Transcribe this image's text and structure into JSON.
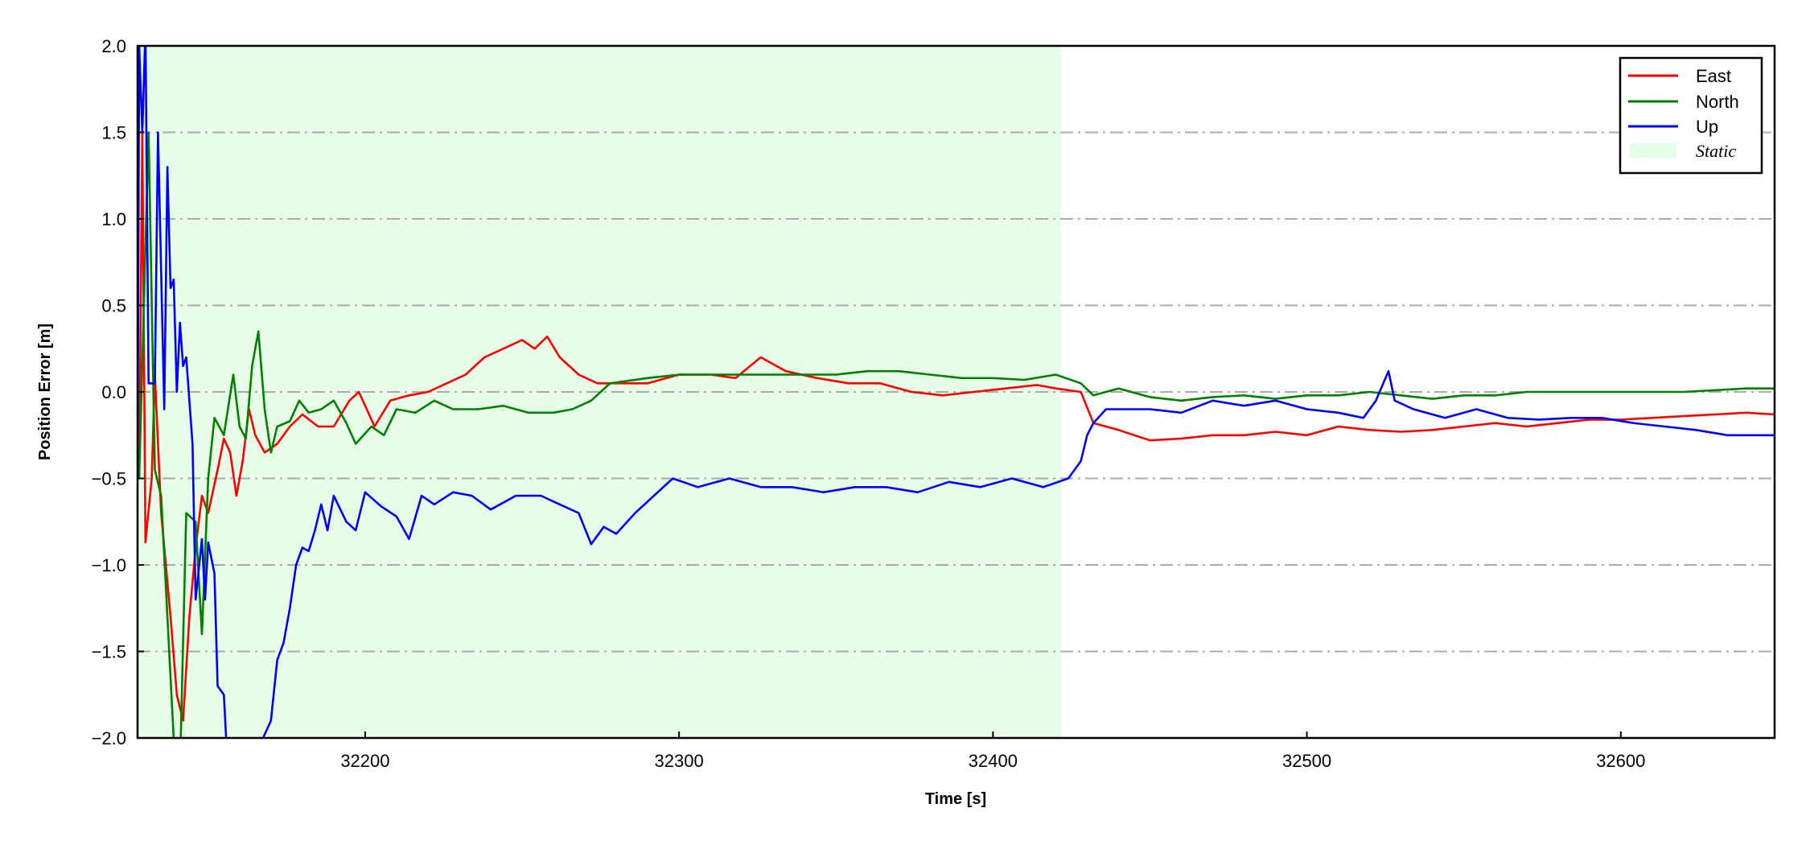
{
  "chart_data": {
    "type": "line",
    "title": "",
    "xlabel": "Time [s]",
    "ylabel": "Position Error [m]",
    "xlim": [
      32127.5,
      32649
    ],
    "ylim": [
      -2.0,
      2.0
    ],
    "xticks": [
      32200,
      32300,
      32400,
      32500,
      32600
    ],
    "xtick_labels": [
      "32200",
      "32300",
      "32400",
      "32500",
      "32600"
    ],
    "yticks": [
      -2.0,
      -1.5,
      -1.0,
      -0.5,
      0.0,
      0.5,
      1.0,
      1.5,
      2.0
    ],
    "ytick_labels": [
      "−2.0",
      "−1.5",
      "−1.0",
      "−0.5",
      "0.0",
      "0.5",
      "1.0",
      "1.5",
      "2.0"
    ],
    "grid": "horizontal dash-dot",
    "legend_position": "top-right",
    "shaded_region": {
      "label": "Static",
      "x": [
        32127.5,
        32421.7
      ],
      "color": "#e8fde8"
    },
    "series": [
      {
        "name": "East",
        "color": "#ff0000",
        "x": [
          32128,
          32129,
          32130,
          32132,
          32133,
          32135,
          32138,
          32140,
          32142,
          32144,
          32146,
          32148,
          32150,
          32153,
          32155,
          32157,
          32159,
          32161,
          32163,
          32165,
          32168,
          32172,
          32176,
          32180,
          32185,
          32190,
          32195,
          32198,
          32203,
          32208,
          32214,
          32220,
          32226,
          32232,
          32238,
          32244,
          32250,
          32254,
          32258,
          32262,
          32268,
          32274,
          32280,
          32290,
          32300,
          32310,
          32318,
          32326,
          32334,
          32344,
          32354,
          32364,
          32374,
          32384,
          32394,
          32404,
          32414,
          32420,
          32428,
          32432,
          32440,
          32450,
          32460,
          32470,
          32480,
          32490,
          32500,
          32510,
          32520,
          32530,
          32540,
          32550,
          32560,
          32570,
          32580,
          32590,
          32600,
          32610,
          32620,
          32630,
          32640,
          32649
        ],
        "y": [
          -0.5,
          1.5,
          -0.87,
          -0.5,
          0.1,
          -0.7,
          -1.3,
          -1.75,
          -1.9,
          -1.3,
          -0.9,
          -0.6,
          -0.7,
          -0.45,
          -0.27,
          -0.35,
          -0.6,
          -0.4,
          -0.1,
          -0.25,
          -0.35,
          -0.3,
          -0.2,
          -0.13,
          -0.2,
          -0.2,
          -0.05,
          0.0,
          -0.2,
          -0.05,
          -0.02,
          0.0,
          0.05,
          0.1,
          0.2,
          0.25,
          0.3,
          0.25,
          0.32,
          0.2,
          0.1,
          0.05,
          0.05,
          0.05,
          0.1,
          0.1,
          0.08,
          0.2,
          0.12,
          0.08,
          0.05,
          0.05,
          0.0,
          -0.02,
          0.0,
          0.02,
          0.04,
          0.02,
          0.0,
          -0.18,
          -0.22,
          -0.28,
          -0.27,
          -0.25,
          -0.25,
          -0.23,
          -0.25,
          -0.2,
          -0.22,
          -0.23,
          -0.22,
          -0.2,
          -0.18,
          -0.2,
          -0.18,
          -0.16,
          -0.16,
          -0.15,
          -0.14,
          -0.13,
          -0.12,
          -0.13
        ]
      },
      {
        "name": "North",
        "color": "#008000",
        "x": [
          32128,
          32131,
          32133,
          32135,
          32137,
          32139,
          32141,
          32143,
          32146,
          32148,
          32150,
          32152,
          32155,
          32158,
          32160,
          32162,
          32164,
          32166,
          32168,
          32170,
          32172,
          32176,
          32179,
          32182,
          32186,
          32190,
          32194,
          32197,
          32202,
          32206,
          32210,
          32216,
          32222,
          32228,
          32236,
          32244,
          32252,
          32260,
          32266,
          32272,
          32278,
          32290,
          32300,
          32310,
          32320,
          32330,
          32340,
          32350,
          32360,
          32370,
          32380,
          32390,
          32400,
          32410,
          32420,
          32428,
          32432,
          32440,
          32450,
          32460,
          32470,
          32480,
          32490,
          32500,
          32510,
          32520,
          32530,
          32540,
          32550,
          32560,
          32570,
          32580,
          32590,
          32600,
          32620,
          32640,
          32649
        ],
        "y": [
          -0.5,
          1.5,
          -0.45,
          -0.6,
          -1.3,
          -2.0,
          -2.2,
          -0.7,
          -0.75,
          -1.4,
          -0.5,
          -0.15,
          -0.25,
          0.1,
          -0.2,
          -0.27,
          0.15,
          0.35,
          -0.1,
          -0.35,
          -0.2,
          -0.17,
          -0.05,
          -0.12,
          -0.1,
          -0.05,
          -0.18,
          -0.3,
          -0.2,
          -0.25,
          -0.1,
          -0.12,
          -0.05,
          -0.1,
          -0.1,
          -0.08,
          -0.12,
          -0.12,
          -0.1,
          -0.05,
          0.05,
          0.08,
          0.1,
          0.1,
          0.1,
          0.1,
          0.1,
          0.1,
          0.12,
          0.12,
          0.1,
          0.08,
          0.08,
          0.07,
          0.1,
          0.05,
          -0.02,
          0.02,
          -0.03,
          -0.05,
          -0.03,
          -0.02,
          -0.04,
          -0.02,
          -0.02,
          0.0,
          -0.02,
          -0.04,
          -0.02,
          -0.02,
          0.0,
          0.0,
          0.0,
          0.0,
          0.0,
          0.02,
          0.02
        ]
      },
      {
        "name": "Up",
        "color": "#0000ff",
        "x": [
          32127.5,
          32128,
          32129,
          32130,
          32131,
          32133,
          32134,
          32136,
          32137,
          32138,
          32139,
          32140,
          32141,
          32142,
          32143,
          32145,
          32146,
          32148,
          32149,
          32150,
          32152,
          32153,
          32155,
          32156,
          32160,
          32165,
          32170,
          32172,
          32174,
          32176,
          32178,
          32180,
          32182,
          32184,
          32186,
          32188,
          32190,
          32194,
          32197,
          32200,
          32205,
          32210,
          32214,
          32218,
          32222,
          32228,
          32234,
          32240,
          32248,
          32256,
          32262,
          32268,
          32272,
          32276,
          32280,
          32286,
          32292,
          32298,
          32306,
          32316,
          32326,
          32336,
          32346,
          32356,
          32366,
          32376,
          32386,
          32396,
          32406,
          32416,
          32424,
          32428,
          32430,
          32432,
          32436,
          32440,
          32450,
          32460,
          32470,
          32480,
          32490,
          32500,
          32510,
          32518,
          32522,
          32526,
          32528,
          32534,
          32544,
          32554,
          32564,
          32574,
          32584,
          32594,
          32604,
          32614,
          32624,
          32634,
          32644,
          32649
        ],
        "y": [
          -0.5,
          2.0,
          1.5,
          2.1,
          0.05,
          0.05,
          1.5,
          -0.1,
          1.3,
          0.6,
          0.65,
          0.0,
          0.4,
          0.15,
          0.2,
          -0.3,
          -1.2,
          -0.85,
          -1.2,
          -0.87,
          -1.05,
          -1.7,
          -1.75,
          -2.1,
          -2.1,
          -2.1,
          -1.9,
          -1.55,
          -1.45,
          -1.25,
          -1.0,
          -0.9,
          -0.92,
          -0.8,
          -0.65,
          -0.8,
          -0.6,
          -0.75,
          -0.8,
          -0.58,
          -0.66,
          -0.72,
          -0.85,
          -0.6,
          -0.65,
          -0.58,
          -0.6,
          -0.68,
          -0.6,
          -0.6,
          -0.65,
          -0.7,
          -0.88,
          -0.78,
          -0.82,
          -0.7,
          -0.6,
          -0.5,
          -0.55,
          -0.5,
          -0.55,
          -0.55,
          -0.58,
          -0.55,
          -0.55,
          -0.58,
          -0.52,
          -0.55,
          -0.5,
          -0.55,
          -0.5,
          -0.4,
          -0.25,
          -0.18,
          -0.1,
          -0.1,
          -0.1,
          -0.12,
          -0.05,
          -0.08,
          -0.05,
          -0.1,
          -0.12,
          -0.15,
          -0.05,
          0.12,
          -0.05,
          -0.1,
          -0.15,
          -0.1,
          -0.15,
          -0.16,
          -0.15,
          -0.15,
          -0.18,
          -0.2,
          -0.22,
          -0.25,
          -0.25,
          -0.25
        ]
      }
    ]
  }
}
